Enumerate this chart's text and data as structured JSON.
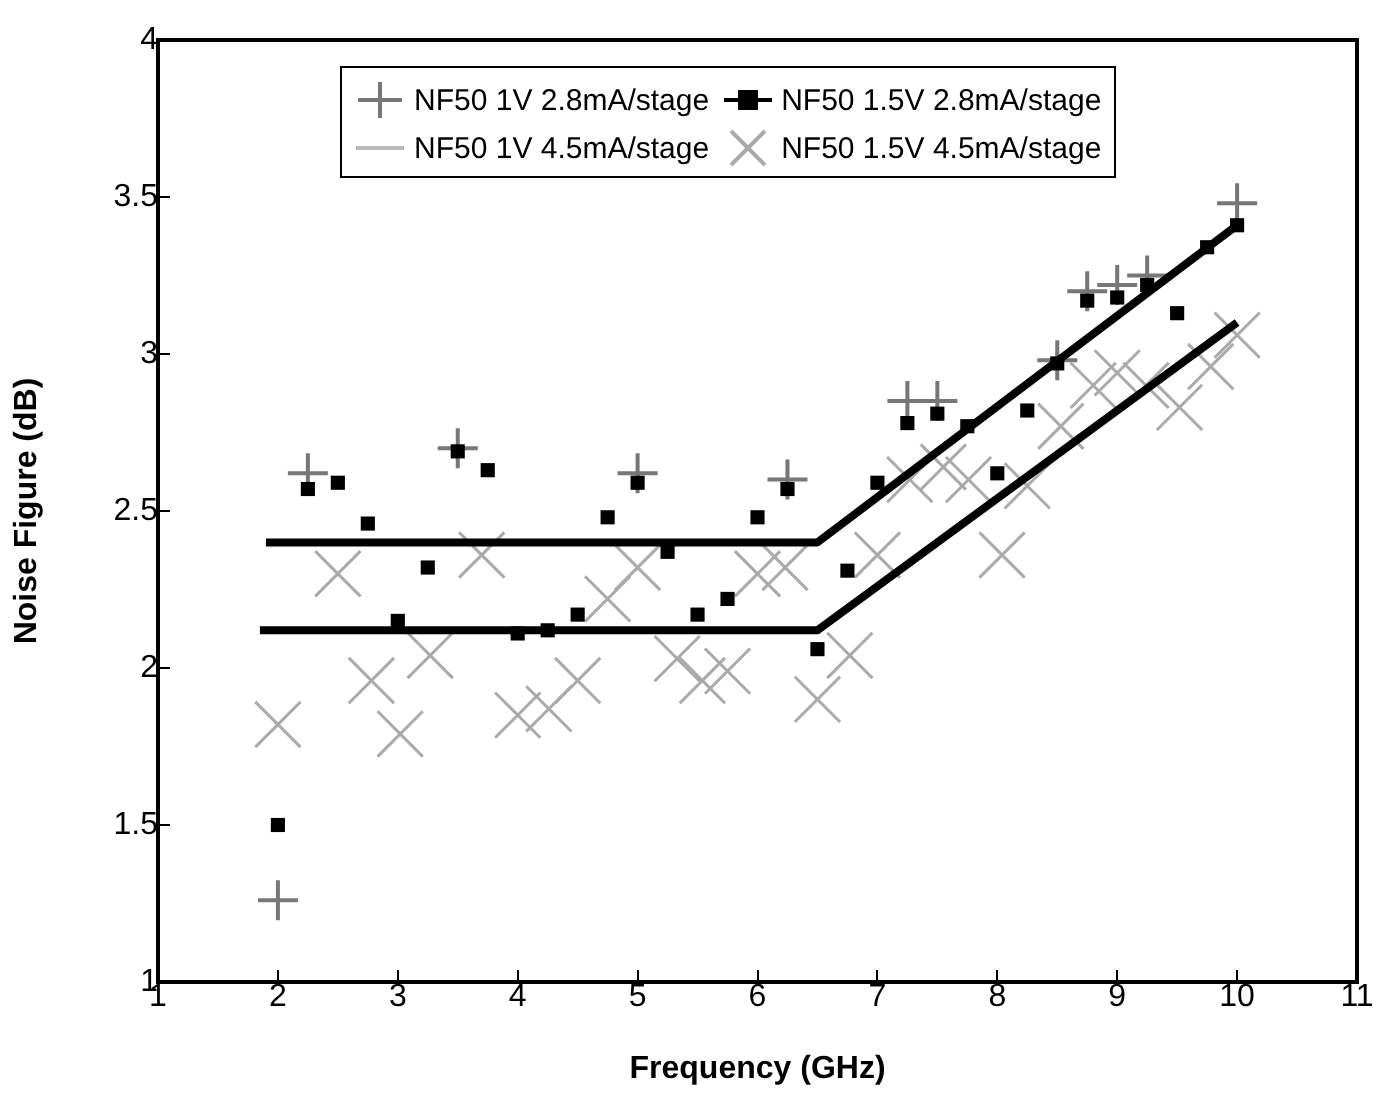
{
  "chart_data": {
    "type": "scatter",
    "xlabel": "Frequency (GHz)",
    "ylabel": "Noise Figure (dB)",
    "xlim": [
      1,
      11
    ],
    "xticks": [
      1,
      2,
      3,
      4,
      5,
      6,
      7,
      8,
      9,
      10,
      11
    ],
    "ylim": [
      1,
      4
    ],
    "yticks": [
      1,
      1.5,
      2,
      2.5,
      3,
      3.5,
      4
    ],
    "grid": false,
    "legend": "top",
    "series": [
      {
        "name": "NF50 1V 2.8mA/stage",
        "type": "scatter",
        "marker": "cross",
        "color": "#777777",
        "x": [
          2,
          2.25,
          3.5,
          5,
          6.25,
          7.25,
          7.5,
          8.5,
          8.75,
          9,
          9.25,
          10
        ],
        "values": [
          1.26,
          2.62,
          2.7,
          2.62,
          2.6,
          2.85,
          2.85,
          2.98,
          3.2,
          3.22,
          3.25,
          3.48
        ]
      },
      {
        "name": "NF50 1.5V 2.8mA/stage",
        "type": "scatter",
        "marker": "square",
        "color": "#000000",
        "x": [
          2,
          2.25,
          2.5,
          2.75,
          3,
          3.25,
          3.5,
          3.75,
          4,
          4.25,
          4.5,
          4.75,
          5,
          5.25,
          5.5,
          5.75,
          6,
          6.25,
          6.5,
          6.75,
          7,
          7.25,
          7.5,
          7.75,
          8,
          8.25,
          8.5,
          8.75,
          9,
          9.25,
          9.5,
          9.75,
          10
        ],
        "values": [
          1.5,
          2.57,
          2.59,
          2.46,
          2.15,
          2.32,
          2.69,
          2.63,
          2.11,
          2.12,
          2.17,
          2.48,
          2.59,
          2.37,
          2.17,
          2.22,
          2.48,
          2.57,
          2.06,
          2.31,
          2.59,
          2.78,
          2.81,
          2.77,
          2.62,
          2.82,
          2.97,
          3.17,
          3.18,
          3.22,
          3.13,
          3.34,
          3.41
        ]
      },
      {
        "name": "NF50 1V 4.5mA/stage",
        "type": "scatter",
        "marker": "none",
        "color": "#bbbbbb"
      },
      {
        "name": "NF50 1.5V 4.5mA/stage",
        "type": "scatter",
        "marker": "x",
        "color": "#aaaaaa",
        "x": [
          2,
          2.5,
          2.78,
          3.02,
          3.27,
          3.7,
          4,
          4.26,
          4.5,
          4.75,
          5,
          5.33,
          5.54,
          5.75,
          6,
          6.23,
          6.5,
          6.77,
          7,
          7.27,
          7.55,
          7.76,
          8.04,
          8.25,
          8.53,
          8.8,
          9,
          9.24,
          9.52,
          9.78,
          10
        ],
        "values": [
          1.82,
          2.3,
          1.96,
          1.79,
          2.04,
          2.36,
          1.85,
          1.87,
          1.96,
          2.22,
          2.32,
          2.03,
          1.96,
          1.99,
          2.3,
          2.32,
          1.9,
          2.04,
          2.36,
          2.6,
          2.64,
          2.6,
          2.36,
          2.58,
          2.77,
          2.9,
          2.94,
          2.9,
          2.83,
          2.96,
          3.06
        ]
      },
      {
        "type": "line",
        "marker": "none",
        "color": "#000000",
        "x": [
          1.9,
          6.5,
          10
        ],
        "values": [
          2.4,
          2.4,
          3.41
        ]
      },
      {
        "type": "line",
        "marker": "none",
        "color": "#000000",
        "x": [
          1.85,
          6.5,
          10
        ],
        "values": [
          2.12,
          2.12,
          3.1
        ]
      }
    ]
  }
}
